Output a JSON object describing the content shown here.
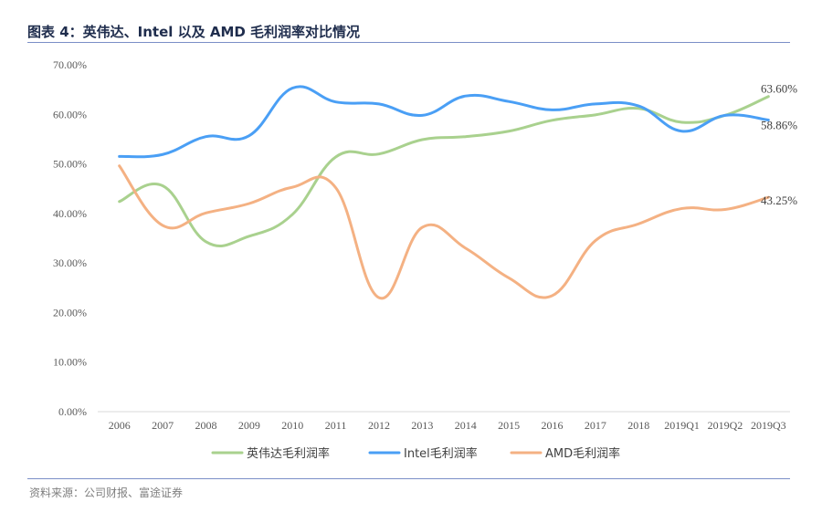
{
  "header": {
    "title": "图表 4：英伟达、Intel 以及 AMD 毛利润率对比情况"
  },
  "footer": {
    "source": "资料来源：公司财报、富途证券"
  },
  "chart_data": {
    "type": "line",
    "x": [
      "2006",
      "2007",
      "2008",
      "2009",
      "2010",
      "2011",
      "2012",
      "2013",
      "2014",
      "2015",
      "2016",
      "2017",
      "2018",
      "2019Q1",
      "2019Q2",
      "2019Q3"
    ],
    "y_ticks": [
      "0.00%",
      "10.00%",
      "20.00%",
      "30.00%",
      "40.00%",
      "50.00%",
      "60.00%",
      "70.00%"
    ],
    "ylim": [
      0,
      70
    ],
    "grid": false,
    "legend_position": "bottom",
    "series": [
      {
        "name": "英伟达毛利润率",
        "color": "#a9d18e",
        "values": [
          42.4,
          45.6,
          34.3,
          35.4,
          39.8,
          51.4,
          52.0,
          54.9,
          55.5,
          56.6,
          58.8,
          59.9,
          61.2,
          58.4,
          59.8,
          63.6
        ],
        "end_label": "63.60%"
      },
      {
        "name": "Intel毛利润率",
        "color": "#4a9ff5",
        "values": [
          51.5,
          51.9,
          55.5,
          55.7,
          65.3,
          62.5,
          62.1,
          59.8,
          63.7,
          62.6,
          60.9,
          62.1,
          61.7,
          56.6,
          59.8,
          58.86
        ],
        "end_label": "58.86%"
      },
      {
        "name": "AMD毛利润率",
        "color": "#f4b183",
        "values": [
          49.6,
          37.6,
          40.1,
          42.0,
          45.3,
          45.2,
          23.0,
          37.2,
          33.0,
          27.0,
          23.4,
          34.5,
          37.9,
          41.0,
          40.8,
          43.25
        ],
        "end_label": "43.25%"
      }
    ]
  }
}
